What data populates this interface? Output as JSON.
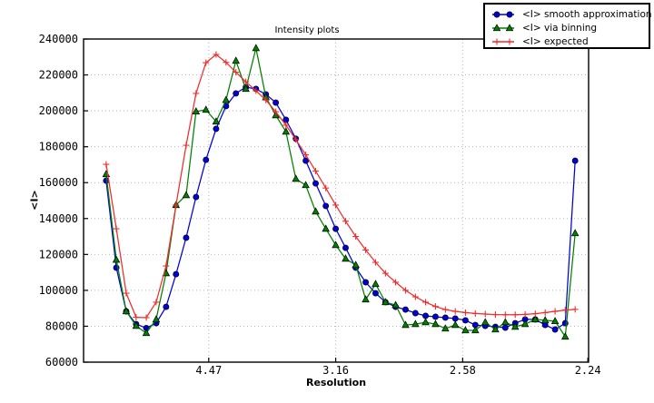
{
  "figure": {
    "title": "Intensity plots",
    "xlabel": "Resolution",
    "ylabel": "<I>"
  },
  "chart_data": {
    "type": "line",
    "title": "Intensity plots",
    "xlabel": "Resolution",
    "ylabel": "<I>",
    "grid": "dotted",
    "legend_position": "upper-right overlapping plot corner",
    "x_axis": {
      "scale": "linear in 1/d^2",
      "range": [
        0.0007,
        0.1996
      ],
      "ticks": [
        {
          "pos": 0.05,
          "label": "4.47"
        },
        {
          "pos": 0.1,
          "label": "3.16"
        },
        {
          "pos": 0.15,
          "label": "2.58"
        },
        {
          "pos": 0.1993,
          "label": "2.24"
        }
      ]
    },
    "y_axis": {
      "range": [
        60000,
        240000
      ],
      "ticks": [
        {
          "pos": 60000,
          "label": "60000"
        },
        {
          "pos": 80000,
          "label": "80000"
        },
        {
          "pos": 100000,
          "label": "100000"
        },
        {
          "pos": 120000,
          "label": "120000"
        },
        {
          "pos": 140000,
          "label": "140000"
        },
        {
          "pos": 160000,
          "label": "160000"
        },
        {
          "pos": 180000,
          "label": "180000"
        },
        {
          "pos": 200000,
          "label": "200000"
        },
        {
          "pos": 220000,
          "label": "220000"
        },
        {
          "pos": 240000,
          "label": "240000"
        }
      ]
    },
    "x": [
      0.0096,
      0.0136,
      0.0175,
      0.0214,
      0.0254,
      0.0293,
      0.0332,
      0.0371,
      0.0411,
      0.045,
      0.0489,
      0.0529,
      0.0568,
      0.0607,
      0.0646,
      0.0686,
      0.0725,
      0.0764,
      0.0804,
      0.0843,
      0.0882,
      0.0921,
      0.0961,
      0.1,
      0.1039,
      0.1079,
      0.1118,
      0.1157,
      0.1196,
      0.1236,
      0.1275,
      0.1314,
      0.1354,
      0.1393,
      0.1432,
      0.1471,
      0.1511,
      0.155,
      0.1589,
      0.1629,
      0.1668,
      0.1707,
      0.1746,
      0.1786,
      0.1825,
      0.1864,
      0.1904,
      0.1943
    ],
    "series": [
      {
        "name": "<I> smooth approximation",
        "color": "#0000dd",
        "marker": "circle",
        "values": [
          161100,
          112600,
          88300,
          81200,
          79000,
          81700,
          90800,
          109000,
          129300,
          152000,
          172700,
          190000,
          202600,
          209700,
          213200,
          212200,
          209200,
          204600,
          195000,
          184500,
          172200,
          159600,
          147000,
          134300,
          123700,
          112600,
          104500,
          98400,
          93400,
          90800,
          89300,
          87300,
          85800,
          85300,
          84800,
          84300,
          83300,
          80700,
          80200,
          79700,
          79200,
          81700,
          83800,
          83800,
          80700,
          78200,
          81700,
          172200
        ]
      },
      {
        "name": "<I> via binning",
        "color": "#008000",
        "marker": "triangle",
        "values": [
          164700,
          117000,
          88300,
          80200,
          76200,
          83800,
          109500,
          147500,
          153000,
          199600,
          200600,
          194000,
          206000,
          227900,
          212200,
          234900,
          207600,
          197500,
          188400,
          162100,
          158600,
          143900,
          134300,
          125200,
          117600,
          114100,
          94900,
          103500,
          93400,
          91800,
          80700,
          81200,
          82200,
          81200,
          78700,
          80700,
          77700,
          77700,
          82200,
          78200,
          82200,
          79700,
          81200,
          83800,
          83300,
          82800,
          74200,
          131800
        ]
      },
      {
        "name": "<I> expected",
        "color": "#ee2c2c",
        "marker": "plus",
        "values": [
          170200,
          134300,
          98400,
          85000,
          84800,
          93400,
          113600,
          147500,
          180800,
          209700,
          226800,
          231400,
          227000,
          221500,
          216200,
          211200,
          206000,
          199500,
          192000,
          184000,
          175500,
          166500,
          157000,
          147500,
          138500,
          130000,
          122500,
          115600,
          109500,
          104500,
          100000,
          96400,
          93400,
          91000,
          89300,
          88300,
          87600,
          87100,
          86800,
          86500,
          86400,
          86400,
          86600,
          87000,
          87600,
          88300,
          89000,
          89400
        ]
      }
    ],
    "style": {
      "grid_color": "#b5b5b5",
      "spine_color": "#000000",
      "background": "#ffffff",
      "tick_label_color": "#000000"
    }
  }
}
